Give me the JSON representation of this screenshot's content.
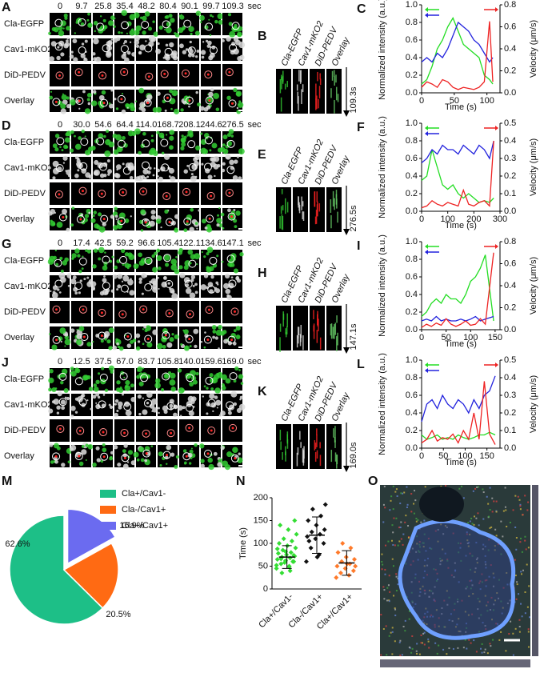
{
  "image_rows": [
    {
      "label": "A",
      "times": [
        "0",
        "9.7",
        "25.8",
        "35.4",
        "48.2",
        "80.4",
        "90.1",
        "99.7",
        "109.3"
      ],
      "unit": "sec",
      "channels": [
        "Cla-EGFP",
        "Cav1-mKO2",
        "DiD-PEDV",
        "Overlay"
      ]
    },
    {
      "label": "D",
      "times": [
        "0",
        "30.0",
        "54.6",
        "64.4",
        "114.0",
        "168.7",
        "208.1",
        "244.6",
        "276.5"
      ],
      "unit": "sec",
      "channels": [
        "Cla-EGFP",
        "Cav1-mKO2",
        "DiD-PEDV",
        "Overlay"
      ]
    },
    {
      "label": "G",
      "times": [
        "0",
        "17.4",
        "42.5",
        "59.2",
        "96.6",
        "105.4",
        "122.1",
        "134.6",
        "147.1"
      ],
      "unit": "sec",
      "channels": [
        "Cla-EGFP",
        "Cav1-mKO2",
        "DiD-PEDV",
        "Overlay"
      ]
    },
    {
      "label": "J",
      "times": [
        "0",
        "12.5",
        "37.5",
        "67.0",
        "83.7",
        "105.8",
        "140.0",
        "159.6",
        "169.0"
      ],
      "unit": "sec",
      "channels": [
        "Cla-EGFP",
        "Cav1-mKO2",
        "DiD-PEDV",
        "Overlay"
      ]
    }
  ],
  "kymographs": [
    {
      "label": "B",
      "channels": [
        "Cla-EGFP",
        "Cav1-mKO2",
        "DiD-PEDV",
        "Overlay"
      ],
      "duration": "109.3s"
    },
    {
      "label": "E",
      "channels": [
        "Cla-EGFP",
        "Cav1-mKO2",
        "DiD-PEDV",
        "Overlay"
      ],
      "duration": "276.5s"
    },
    {
      "label": "H",
      "channels": [
        "Cla-EGFP",
        "Cav1-mKO2",
        "DiD-PEDV",
        "Overlay"
      ],
      "duration": "147.1s"
    },
    {
      "label": "K",
      "channels": [
        "Cla-EGFP",
        "Cav1-mKO2",
        "DiD-PEDV",
        "Overlay"
      ],
      "duration": "169.0s"
    }
  ],
  "chart_data": [
    {
      "type": "line",
      "label": "C",
      "xlabel": "Time (s)",
      "ylabel": "Normalized intensity (a.u.)",
      "y2label": "Velocity (μm/s)",
      "xlim": [
        0,
        120
      ],
      "xticks": [
        0,
        50,
        100
      ],
      "ylim": [
        0,
        1
      ],
      "yticks": [
        {
          "value": 0,
          "label": "0.0"
        },
        0.2,
        0.4,
        0.6,
        0.8,
        {
          "value": 1,
          "label": "1.0"
        }
      ],
      "y2lim": [
        0,
        0.8
      ],
      "y2ticks": [
        {
          "value": 0,
          "label": "0.0"
        },
        0.2,
        0.4,
        0.6,
        0.8
      ],
      "x": [
        0,
        8,
        16,
        24,
        32,
        40,
        48,
        56,
        64,
        72,
        80,
        88,
        96,
        104,
        109
      ],
      "series": [
        {
          "color": "#22dd22",
          "values": [
            0.1,
            0.15,
            0.3,
            0.5,
            0.6,
            0.75,
            0.85,
            0.7,
            0.55,
            0.5,
            0.45,
            0.4,
            0.2,
            0.15,
            0.1
          ]
        },
        {
          "color": "#2222dd",
          "values": [
            0.35,
            0.4,
            0.35,
            0.45,
            0.4,
            0.5,
            0.65,
            0.8,
            0.75,
            0.7,
            0.6,
            0.55,
            0.45,
            0.35,
            0.4
          ]
        },
        {
          "color": "#ee2222",
          "axis": "y2",
          "values": [
            0.05,
            0.1,
            0.08,
            0.05,
            0.12,
            0.1,
            0.05,
            0.03,
            0.05,
            0.04,
            0.03,
            0.05,
            0.1,
            0.65,
            0.1
          ]
        }
      ]
    },
    {
      "type": "line",
      "label": "F",
      "xlabel": "Time (s)",
      "ylabel": "Normalized intensity (a.u.)",
      "y2label": "Velocity (μm/s)",
      "xlim": [
        0,
        300
      ],
      "xticks": [
        0,
        100,
        200,
        300
      ],
      "ylim": [
        0,
        1
      ],
      "yticks": [
        {
          "value": 0,
          "label": "0.0"
        },
        0.2,
        0.4,
        0.6,
        0.8,
        {
          "value": 1,
          "label": "1.0"
        }
      ],
      "y2lim": [
        0,
        0.5
      ],
      "y2ticks": [
        {
          "value": 0,
          "label": "0.0"
        },
        0.1,
        0.2,
        0.3,
        0.4,
        0.5
      ],
      "x": [
        0,
        20,
        40,
        60,
        80,
        100,
        120,
        140,
        160,
        180,
        200,
        220,
        240,
        260,
        276
      ],
      "series": [
        {
          "color": "#22dd22",
          "values": [
            0.35,
            0.4,
            0.7,
            0.5,
            0.3,
            0.25,
            0.3,
            0.2,
            0.15,
            0.2,
            0.15,
            0.1,
            0.12,
            0.1,
            0.15
          ]
        },
        {
          "color": "#2222dd",
          "values": [
            0.55,
            0.6,
            0.7,
            0.65,
            0.75,
            0.7,
            0.7,
            0.65,
            0.75,
            0.7,
            0.65,
            0.75,
            0.7,
            0.6,
            0.8
          ]
        },
        {
          "color": "#ee2222",
          "axis": "y2",
          "values": [
            0.02,
            0.03,
            0.06,
            0.04,
            0.03,
            0.05,
            0.04,
            0.03,
            0.12,
            0.04,
            0.03,
            0.05,
            0.06,
            0.03,
            0.4
          ]
        }
      ]
    },
    {
      "type": "line",
      "label": "I",
      "xlabel": "Time (s)",
      "ylabel": "Normalized intensity (a.u.)",
      "y2label": "Velocity (μm/s)",
      "xlim": [
        0,
        160
      ],
      "xticks": [
        0,
        50,
        100,
        150
      ],
      "ylim": [
        0,
        1
      ],
      "yticks": [
        {
          "value": 0,
          "label": "0.0"
        },
        0.2,
        0.4,
        0.6,
        0.8,
        {
          "value": 1,
          "label": "1.0"
        }
      ],
      "y2lim": [
        0,
        0.8
      ],
      "y2ticks": [
        {
          "value": 0,
          "label": "0.0"
        },
        0.2,
        0.4,
        0.6,
        0.8
      ],
      "x": [
        0,
        10,
        20,
        30,
        40,
        50,
        60,
        70,
        80,
        90,
        100,
        110,
        120,
        130,
        147
      ],
      "series": [
        {
          "color": "#22dd22",
          "values": [
            0.15,
            0.2,
            0.3,
            0.35,
            0.3,
            0.4,
            0.35,
            0.35,
            0.3,
            0.4,
            0.55,
            0.6,
            0.7,
            0.85,
            0.1
          ]
        },
        {
          "color": "#2222dd",
          "values": [
            0.1,
            0.12,
            0.1,
            0.15,
            0.1,
            0.12,
            0.1,
            0.1,
            0.12,
            0.1,
            0.12,
            0.15,
            0.1,
            0.12,
            0.15
          ]
        },
        {
          "color": "#ee2222",
          "axis": "y2",
          "values": [
            0.02,
            0.05,
            0.03,
            0.06,
            0.04,
            0.1,
            0.05,
            0.03,
            0.05,
            0.08,
            0.04,
            0.05,
            0.1,
            0.05,
            0.7
          ]
        }
      ]
    },
    {
      "type": "line",
      "label": "L",
      "xlabel": "Time (s)",
      "ylabel": "Normalized intensity (a.u.)",
      "y2label": "Velocity (μm/s)",
      "xlim": [
        0,
        180
      ],
      "xticks": [
        0,
        50,
        100,
        150
      ],
      "ylim": [
        0,
        1
      ],
      "yticks": [
        {
          "value": 0,
          "label": "0.0"
        },
        0.2,
        0.4,
        0.6,
        0.8,
        {
          "value": 1,
          "label": "1.0"
        }
      ],
      "y2lim": [
        0,
        0.5
      ],
      "y2ticks": [
        {
          "value": 0,
          "label": "0.0"
        },
        0.1,
        0.2,
        0.3,
        0.4,
        0.5
      ],
      "x": [
        0,
        12,
        24,
        36,
        48,
        60,
        72,
        84,
        96,
        108,
        120,
        132,
        144,
        156,
        169
      ],
      "series": [
        {
          "color": "#22dd22",
          "values": [
            0.15,
            0.1,
            0.12,
            0.15,
            0.1,
            0.12,
            0.1,
            0.15,
            0.12,
            0.1,
            0.12,
            0.15,
            0.15,
            0.18,
            0.15
          ]
        },
        {
          "color": "#2222dd",
          "values": [
            0.3,
            0.5,
            0.55,
            0.45,
            0.6,
            0.5,
            0.45,
            0.55,
            0.5,
            0.4,
            0.55,
            0.45,
            0.6,
            0.65,
            0.82
          ]
        },
        {
          "color": "#ee2222",
          "axis": "y2",
          "values": [
            0.03,
            0.05,
            0.1,
            0.04,
            0.06,
            0.05,
            0.08,
            0.03,
            0.1,
            0.05,
            0.2,
            0.05,
            0.38,
            0.08,
            0.02
          ]
        }
      ]
    },
    {
      "type": "pie",
      "label": "M",
      "categories": [
        "Cla+/Cav1-",
        "Cla-/Cav1+",
        "Cla+/Cav1+"
      ],
      "values": [
        62.6,
        20.5,
        16.9
      ],
      "value_labels": [
        "62.6%",
        "20.5%",
        "16.9%"
      ],
      "colors": [
        "#1dbf87",
        "#ff6a13",
        "#6b6bf0"
      ]
    },
    {
      "type": "scatter",
      "label": "N",
      "ylabel": "Time (s)",
      "categories": [
        "Cla+/Cav1-",
        "Cla-/Cav1+",
        "Cla+/Cav1+"
      ],
      "colors": [
        "#33dd33",
        "#111111",
        "#ff7a2a"
      ],
      "ylim": [
        0,
        200
      ],
      "yticks": [
        0,
        50,
        100,
        150,
        200
      ],
      "points": [
        [
          45,
          50,
          55,
          60,
          62,
          65,
          68,
          70,
          72,
          75,
          78,
          80,
          85,
          90,
          95,
          100,
          105,
          110,
          120,
          130,
          140,
          60,
          58,
          52,
          48,
          66,
          74,
          82,
          88,
          40,
          35,
          150
        ],
        [
          60,
          75,
          90,
          100,
          110,
          115,
          120,
          125,
          130,
          140,
          150,
          160,
          175,
          185,
          70,
          105
        ],
        [
          25,
          30,
          35,
          40,
          45,
          50,
          55,
          60,
          65,
          70,
          80,
          90,
          100,
          50,
          55
        ]
      ],
      "means": [
        70,
        118,
        57
      ],
      "sds": [
        25,
        40,
        27
      ]
    }
  ],
  "image_o": {
    "label": "O"
  }
}
